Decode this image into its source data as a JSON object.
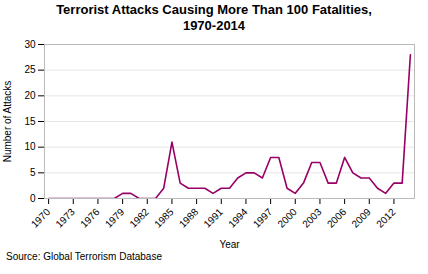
{
  "chart_data": {
    "type": "line",
    "title": "Terrorist Attacks Causing More Than 100 Fatalities,\n1970-2014",
    "xlabel": "Year",
    "ylabel": "Number of Attacks",
    "caption": "Source: Global Terrorism Database",
    "x": [
      1970,
      1971,
      1972,
      1973,
      1974,
      1975,
      1976,
      1977,
      1978,
      1979,
      1980,
      1981,
      1982,
      1983,
      1984,
      1985,
      1986,
      1987,
      1988,
      1989,
      1990,
      1991,
      1992,
      1993,
      1994,
      1995,
      1996,
      1997,
      1998,
      1999,
      2000,
      2001,
      2002,
      2003,
      2004,
      2005,
      2006,
      2007,
      2008,
      2009,
      2010,
      2011,
      2012,
      2013,
      2014
    ],
    "values": [
      0,
      0,
      0,
      0,
      0,
      0,
      0,
      0,
      0,
      1,
      1,
      0,
      0,
      0,
      2,
      11,
      3,
      2,
      2,
      2,
      1,
      2,
      2,
      4,
      5,
      5,
      4,
      8,
      8,
      2,
      1,
      3,
      7,
      7,
      3,
      3,
      8,
      5,
      4,
      4,
      2,
      1,
      3,
      3,
      28
    ],
    "color": "#990066",
    "xlim": [
      1969.5,
      2014.5
    ],
    "xticks": [
      1970,
      1973,
      1976,
      1979,
      1982,
      1985,
      1988,
      1991,
      1994,
      1997,
      2000,
      2003,
      2006,
      2009,
      2012
    ],
    "ylim": [
      0,
      30
    ],
    "yticks": [
      0,
      5,
      10,
      15,
      20,
      25,
      30
    ],
    "grid": true
  }
}
